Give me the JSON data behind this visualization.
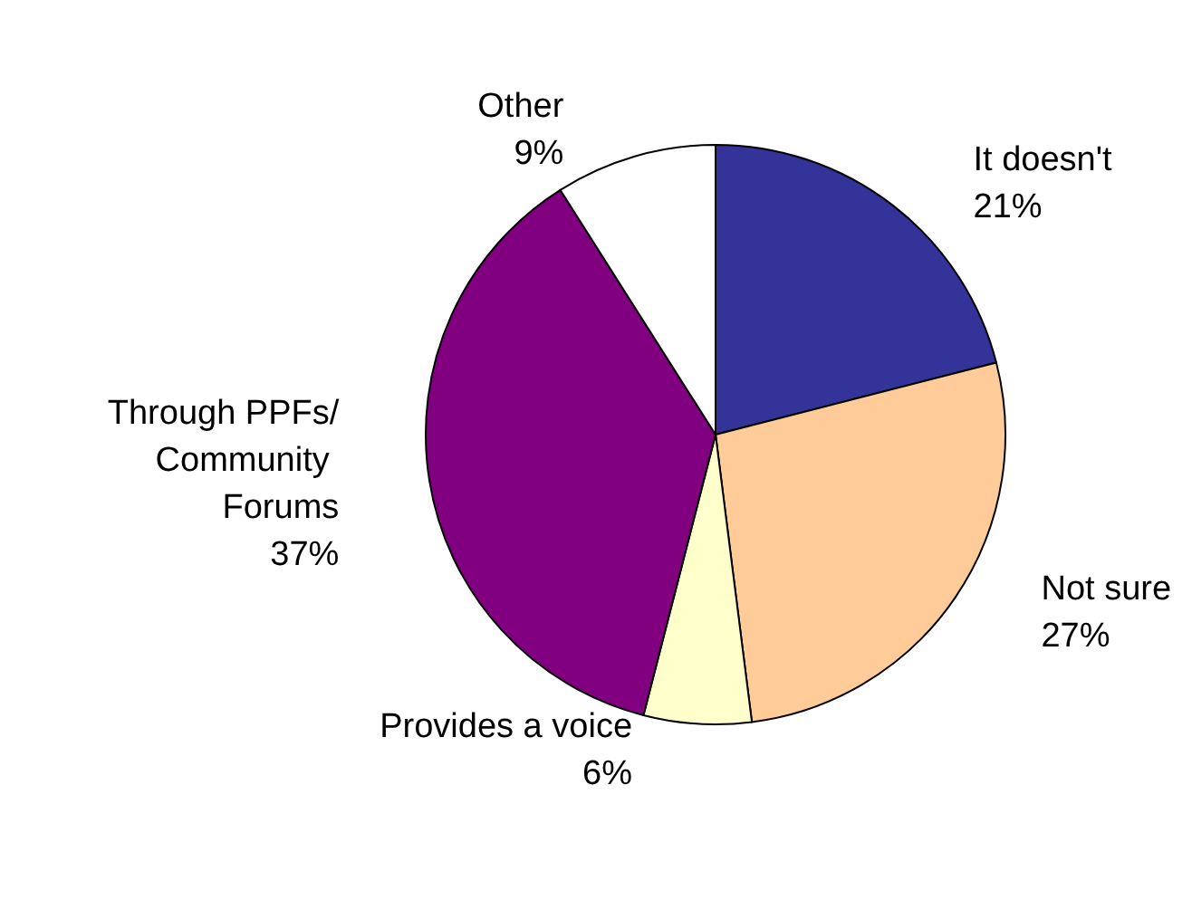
{
  "chart_data": {
    "type": "pie",
    "categories": [
      "It doesn't",
      "Not sure",
      "Provides a voice",
      "Through PPFs/Community Forums",
      "Other"
    ],
    "values": [
      21,
      27,
      6,
      37,
      9
    ],
    "value_labels": [
      "21%",
      "27%",
      "6%",
      "37%",
      "9%"
    ],
    "colors": [
      "#333399",
      "#ffcc99",
      "#ffffcc",
      "#800080",
      "#ffffff"
    ],
    "legend": false
  }
}
